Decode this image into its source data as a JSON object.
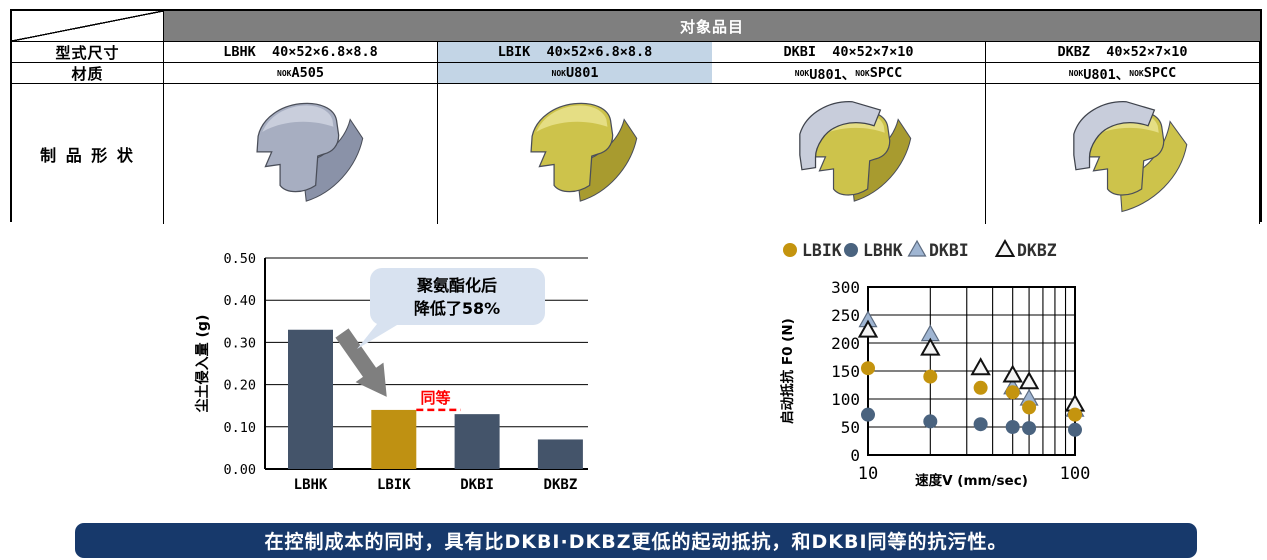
{
  "table": {
    "header_label": "对象品目",
    "row_labels": {
      "size": "型式尺寸",
      "material": "材质",
      "shape": "制 品 形 状"
    },
    "material_separator": "、",
    "products": [
      {
        "code": "LBHK",
        "size_text": "LBHK  40×52×6.8×8.8",
        "materials": [
          {
            "brand": "NOK",
            "grade": "A505"
          }
        ],
        "highlight": false,
        "shape": "rubber-gray"
      },
      {
        "code": "LBIK",
        "size_text": "LBIK  40×52×6.8×8.8",
        "materials": [
          {
            "brand": "NOK",
            "grade": "U801"
          }
        ],
        "highlight": true,
        "shape": "pu-yellow"
      },
      {
        "code": "DKBI",
        "size_text": "DKBI  40×52×7×10",
        "materials": [
          {
            "brand": "NOK",
            "grade": "U801"
          },
          {
            "brand": "NOK",
            "grade": "SPCC"
          }
        ],
        "highlight": false,
        "shape": "capped-yellow"
      },
      {
        "code": "DKBZ",
        "size_text": "DKBZ  40×52×7×10",
        "materials": [
          {
            "brand": "NOK",
            "grade": "U801"
          },
          {
            "brand": "NOK",
            "grade": "SPCC"
          }
        ],
        "highlight": false,
        "shape": "capped-yellow-open"
      }
    ]
  },
  "chart_data": [
    {
      "type": "bar",
      "title": "",
      "xlabel": "",
      "ylabel": "尘土侵入量 (g)",
      "categories": [
        "LBHK",
        "LBIK",
        "DKBI",
        "DKBZ"
      ],
      "values": [
        0.33,
        0.14,
        0.13,
        0.07
      ],
      "ylim": [
        0,
        0.5
      ],
      "yticks": [
        "0.00",
        "0.10",
        "0.20",
        "0.30",
        "0.40",
        "0.50"
      ],
      "grid": "horizontal",
      "bar_colors": [
        "#44546A",
        "#BF9112",
        "#44546A",
        "#44546A"
      ],
      "annotations": {
        "callout": {
          "lines": [
            "聚氨酯化后",
            "降低了58%"
          ],
          "fill": "#d8e2f0",
          "text_color": "#000000"
        },
        "arrow_color": "#7f7f7f",
        "equal": {
          "label": "同等",
          "color": "#ff0000"
        }
      }
    },
    {
      "type": "scatter",
      "title": "",
      "xlabel": "速度V (mm/sec)",
      "ylabel": "启动抵抗 F0 (N)",
      "xscale": "log",
      "xlim": [
        10,
        100
      ],
      "ylim": [
        0,
        300
      ],
      "xticks": [
        "10",
        "100"
      ],
      "yticks": [
        "0",
        "50",
        "100",
        "150",
        "200",
        "250",
        "300"
      ],
      "grid": "both",
      "legend_position": "top",
      "series": [
        {
          "name": "LBIK",
          "marker": "circle",
          "color": "#C4940E",
          "x": [
            10,
            20,
            35,
            50,
            60,
            100
          ],
          "y": [
            155,
            140,
            120,
            112,
            85,
            72
          ]
        },
        {
          "name": "LBHK",
          "marker": "circle",
          "color": "#4A637F",
          "x": [
            10,
            20,
            35,
            50,
            60,
            100
          ],
          "y": [
            72,
            60,
            55,
            50,
            48,
            45
          ]
        },
        {
          "name": "DKBI",
          "marker": "triangle",
          "color": "#9FB5D2",
          "x": [
            10,
            20,
            50,
            60,
            100
          ],
          "y": [
            240,
            215,
            120,
            100,
            80
          ]
        },
        {
          "name": "DKBZ",
          "marker": "triangle-open",
          "color": "#f5f5f5",
          "x": [
            10,
            20,
            35,
            50,
            60,
            100
          ],
          "y": [
            222,
            190,
            155,
            142,
            130,
            90
          ]
        }
      ]
    }
  ],
  "banner": {
    "text": "在控制成本的同时，具有比DKBI·DKBZ更低的起动抵抗，和DKBI同等的抗污性。",
    "bg": "#17396B",
    "fg": "#FFFFFF"
  },
  "colors": {
    "table_header_bg": "#7f7f7f",
    "highlight_bg": "#c3d5e6",
    "bar_dark": "#44546A",
    "bar_gold": "#BF9112",
    "seal_gray_top": "#C9CEDC",
    "seal_gray_mid": "#A7AEC1",
    "seal_gray_dark": "#8A92A8",
    "seal_yellow_top": "#E5DE84",
    "seal_yellow_mid": "#CDC34B",
    "seal_yellow_dark": "#A89B2F",
    "metal_cap": "#C8CDDB"
  }
}
